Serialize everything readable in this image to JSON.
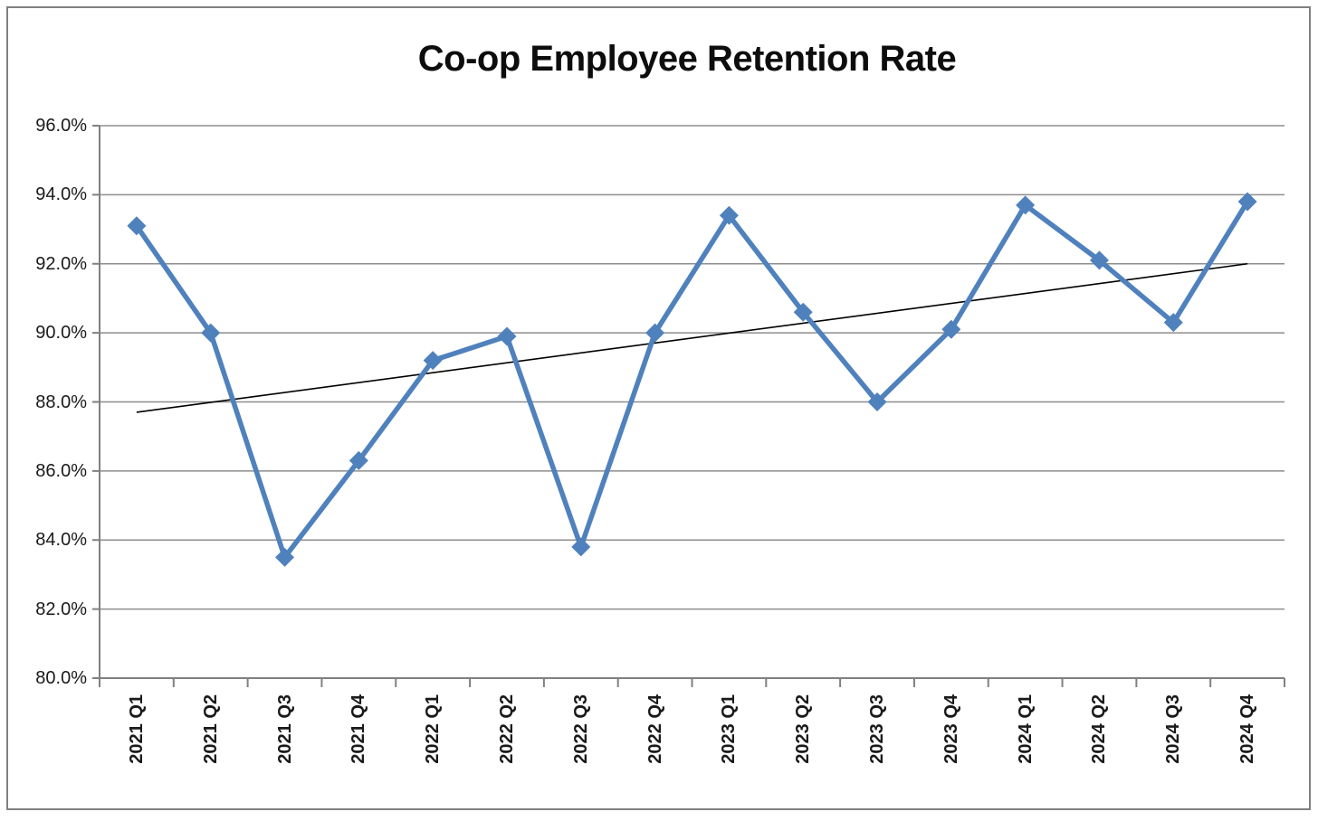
{
  "frame": {
    "background": "#ffffff",
    "border_color": "#808080"
  },
  "chart_data": {
    "type": "line",
    "title": "Co-op Employee Retention Rate",
    "categories": [
      "2021 Q1",
      "2021 Q2",
      "2021 Q3",
      "2021 Q4",
      "2022 Q1",
      "2022 Q2",
      "2022 Q3",
      "2022 Q4",
      "2023 Q1",
      "2023 Q2",
      "2023 Q3",
      "2023 Q4",
      "2024 Q1",
      "2024 Q2",
      "2024 Q3",
      "2024 Q4"
    ],
    "series": [
      {
        "name": "Retention Rate",
        "values": [
          93.1,
          90.0,
          83.5,
          86.3,
          89.2,
          89.9,
          83.8,
          90.0,
          93.4,
          90.6,
          88.0,
          90.1,
          93.7,
          92.1,
          90.3,
          93.8
        ],
        "color": "#4F81BD",
        "marker": "diamond"
      }
    ],
    "trendline": {
      "start_value": 87.7,
      "end_value": 92.0,
      "color": "#000000"
    },
    "xlabel": "",
    "ylabel": "",
    "ylim": [
      80,
      96
    ],
    "ytick_step": 2,
    "ytick_labels": [
      "96.0%",
      "94.0%",
      "92.0%",
      "90.0%",
      "88.0%",
      "86.0%",
      "84.0%",
      "82.0%",
      "80.0%"
    ],
    "grid": true,
    "legend_position": "none",
    "gridline_color": "#8e8e8e",
    "axis_color": "#808080",
    "tick_label_color": "#1a1a1a"
  }
}
